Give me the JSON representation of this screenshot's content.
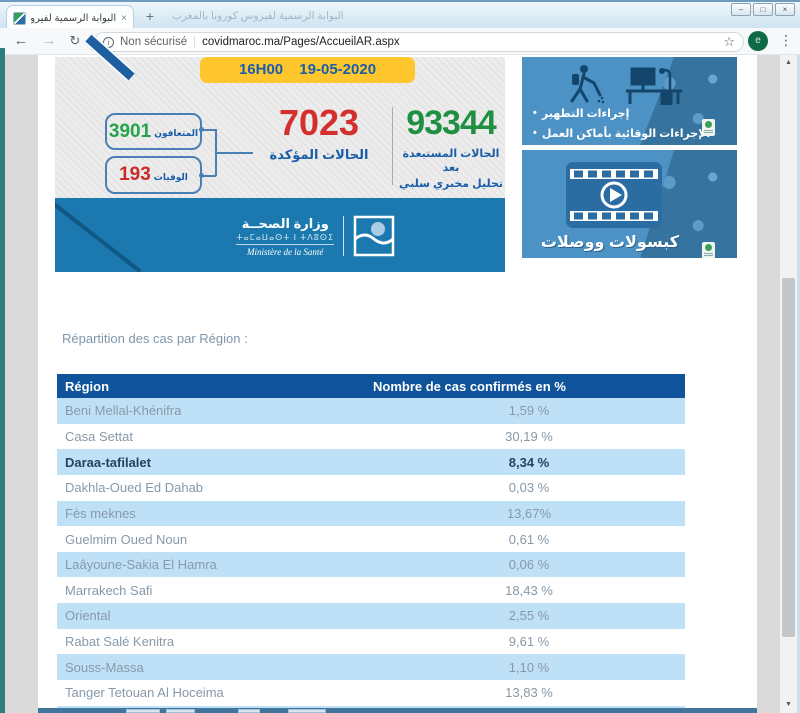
{
  "browser": {
    "tab_title": "البوابة الرسمية لفيروس كورونا بالمغرب",
    "background_title_text": "البوابة الرسمية لفيروس كورونا بالمغرب",
    "security_label": "Non sécurisé",
    "url": "covidmaroc.ma/Pages/AccueilAR.aspx",
    "separator": "|"
  },
  "icons": {
    "back": "←",
    "forward": "→",
    "reload": "↻",
    "star": "☆",
    "menu": "⋮",
    "info": "i",
    "new_tab": "+",
    "close_tab": "×",
    "minimize": "–",
    "maximize": "□",
    "close": "×",
    "scroll_up": "▲",
    "scroll_down": "▼",
    "bullet": "•",
    "avatar_letter": "e"
  },
  "banner": {
    "timestamp_badge": "16H00 19-05-2020",
    "stats": {
      "recovered": {
        "value": "3901",
        "label": "المتعافون"
      },
      "deaths": {
        "value": "193",
        "label": "الوفيات"
      },
      "confirmed": {
        "value": "7023",
        "label": "الحالات المؤكدة"
      },
      "excluded": {
        "value": "93344",
        "label_line1": "الحالات المستبعدة بعد",
        "label_line2": "تحليل مخبري سلبي"
      }
    },
    "ministry": {
      "name_ar": "وزارة الصحــة",
      "name_tifinagh": "ⵜⴰⵎⴰⵡⴰⵙⵜ ⵏ ⵜⴷⵓⵙⵉ",
      "name_fr": "Ministère de la Santé"
    }
  },
  "tiles": {
    "tile1": {
      "items": [
        "إجراءات التطهير",
        "الإجراءات الوقائية بأماكن العمل"
      ]
    },
    "tile2": {
      "label": "كبسولات ووصلات"
    }
  },
  "section": {
    "title": "Répartition des cas par Région :"
  },
  "table": {
    "headers": [
      "Région",
      "Nombre de cas confirmés en %"
    ],
    "rows": [
      {
        "region": "Beni Mellal-Khénifra",
        "value": "1,59 %"
      },
      {
        "region": "Casa Settat",
        "value": "30,19 %"
      },
      {
        "region": "Daraa-tafilalet",
        "value": "8,34 %",
        "bold": true
      },
      {
        "region": "Dakhla-Oued Ed Dahab",
        "value": "0,03 %"
      },
      {
        "region": "Fès meknes",
        "value": "13,67%"
      },
      {
        "region": "Guelmim Oued Noun",
        "value": "0,61 %"
      },
      {
        "region": "Laâyoune-Sakia El Hamra",
        "value": "0,06 %"
      },
      {
        "region": "Marrakech Safi",
        "value": "18,43 %"
      },
      {
        "region": "Oriental",
        "value": "2,55 %"
      },
      {
        "region": "Rabat Salé Kenitra",
        "value": "9,61 %"
      },
      {
        "region": "Souss-Massa",
        "value": "1,10 %"
      },
      {
        "region": "Tanger Tetouan Al Hoceima",
        "value": "13,83 %"
      }
    ]
  },
  "colors": {
    "header_blue": "#0f549b",
    "row_blue": "#bfe1f8",
    "banner_blue": "#1b79af",
    "tile_blue": "#4c92c5",
    "badge_yellow": "#ffc62e",
    "stat_green": "#25a24c",
    "stat_red": "#d32f2f",
    "label_blue": "#1a5da8",
    "edge_teal": "#2e7e80"
  }
}
